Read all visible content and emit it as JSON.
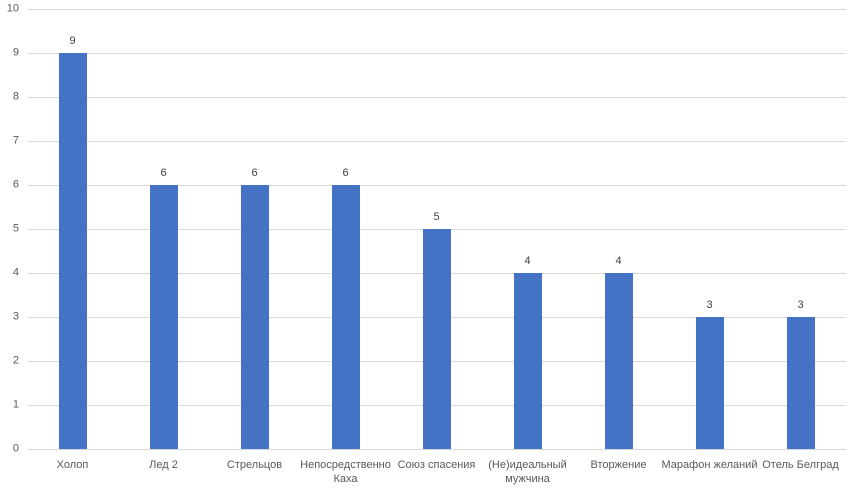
{
  "chart_data": {
    "type": "bar",
    "categories": [
      "Холоп",
      "Лед 2",
      "Стрельцов",
      "Непосредственно Каха",
      "Союз спасения",
      "(Не)идеальный мужчина",
      "Вторжение",
      "Марафон желаний",
      "Отель Белград"
    ],
    "values": [
      9,
      6,
      6,
      6,
      5,
      4,
      4,
      3,
      3
    ],
    "title": "",
    "xlabel": "",
    "ylabel": "",
    "ylim": [
      0,
      10
    ],
    "ytick_step": 1,
    "yticks": [
      0,
      1,
      2,
      3,
      4,
      5,
      6,
      7,
      8,
      9,
      10
    ],
    "grid": true,
    "legend": "none",
    "data_labels": true,
    "bar_color": "#4472C4",
    "gridline_color": "#D9D9D9",
    "axis_label_color": "#595959",
    "value_label_color": "#404040",
    "background_color": "#FFFFFF"
  }
}
